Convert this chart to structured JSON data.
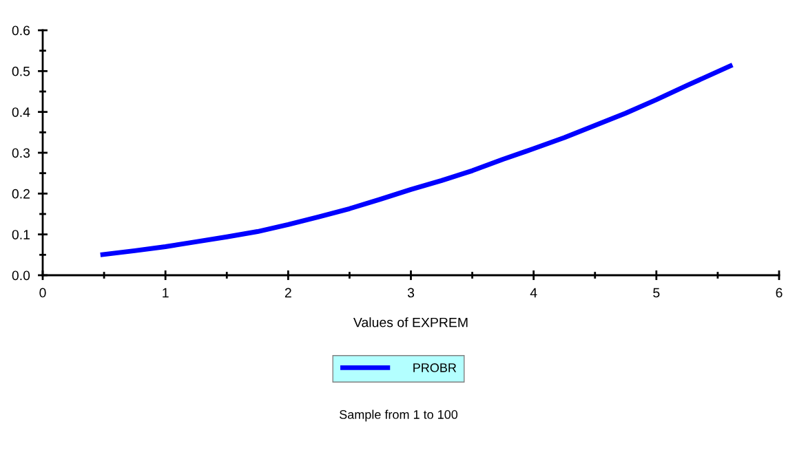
{
  "chart_data": {
    "type": "line",
    "xlabel": "Values of EXPREM",
    "x": [
      0.47,
      0.75,
      1.0,
      1.25,
      1.5,
      1.75,
      2.0,
      2.25,
      2.5,
      2.75,
      3.0,
      3.25,
      3.5,
      3.75,
      4.0,
      4.25,
      4.5,
      4.75,
      5.0,
      5.25,
      5.62
    ],
    "series": [
      {
        "name": "PROBR",
        "color": "#0000ff",
        "values": [
          0.05,
          0.06,
          0.07,
          0.082,
          0.094,
          0.107,
          0.124,
          0.143,
          0.163,
          0.186,
          0.21,
          0.232,
          0.256,
          0.284,
          0.31,
          0.337,
          0.367,
          0.397,
          0.43,
          0.465,
          0.515
        ]
      }
    ],
    "xlim": [
      0,
      6
    ],
    "xticks": [
      0,
      1,
      2,
      3,
      4,
      5,
      6
    ],
    "ylim": [
      0,
      0.6
    ],
    "yticks": [
      {
        "value": 0,
        "label": "0.0"
      },
      0.1,
      0.2,
      0.3,
      0.4,
      0.5,
      0.6
    ],
    "grid": false,
    "legend": "bottom",
    "marker": "none",
    "line_style": "solid",
    "annotations": [
      "Sample from 1 to 100"
    ]
  }
}
